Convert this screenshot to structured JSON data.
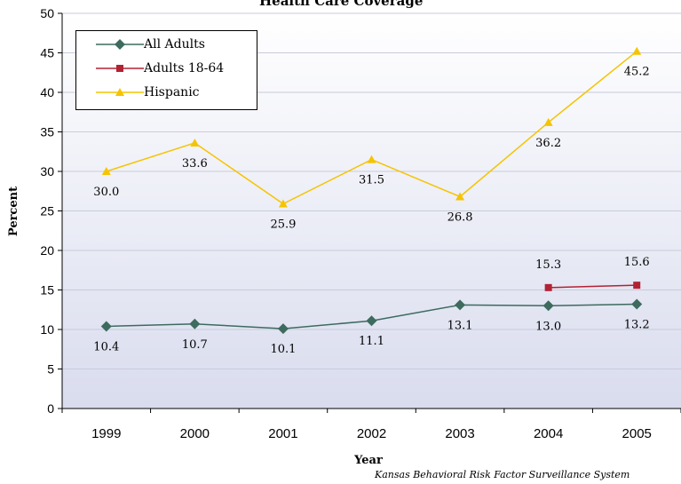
{
  "chart_data": {
    "type": "line",
    "title": "Health Care Coverage",
    "xlabel": "Year",
    "ylabel": "Percent",
    "source": "Kansas Behavioral Risk Factor Surveillance System",
    "categories": [
      "1999",
      "2000",
      "2001",
      "2002",
      "2003",
      "2004",
      "2005"
    ],
    "ylim": [
      0,
      50
    ],
    "yticks": [
      0,
      5,
      10,
      15,
      20,
      25,
      30,
      35,
      40,
      45,
      50
    ],
    "grid": true,
    "legend_position": "top-left",
    "series": [
      {
        "name": "All Adults",
        "color": "#3d6b5e",
        "marker": "diamond",
        "values": [
          10.4,
          10.7,
          10.1,
          11.1,
          13.1,
          13.0,
          13.2
        ],
        "labels": [
          "10.4",
          "10.7",
          "10.1",
          "11.1",
          "13.1",
          "13.0",
          "13.2"
        ]
      },
      {
        "name": "Adults 18-64",
        "color": "#b22234",
        "marker": "square",
        "values": [
          null,
          null,
          null,
          null,
          null,
          15.3,
          15.6
        ],
        "labels": [
          null,
          null,
          null,
          null,
          null,
          "15.3",
          "15.6"
        ]
      },
      {
        "name": "Hispanic",
        "color": "#f5c400",
        "marker": "triangle",
        "values": [
          30.0,
          33.6,
          25.9,
          31.5,
          26.8,
          36.2,
          45.2
        ],
        "labels": [
          "30.0",
          "33.6",
          "25.9",
          "31.5",
          "26.8",
          "36.2",
          "45.2"
        ]
      }
    ]
  }
}
